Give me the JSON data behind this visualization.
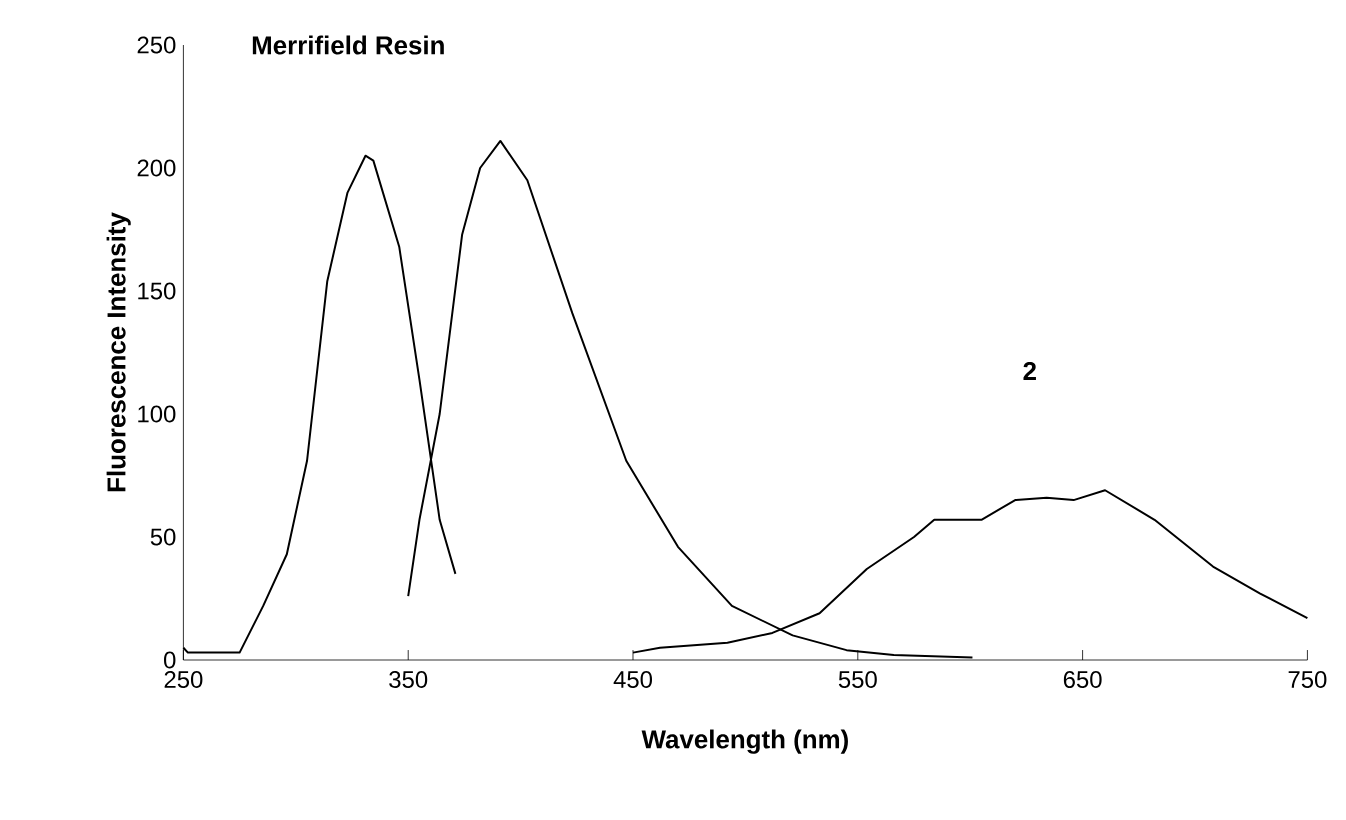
{
  "chart_data": {
    "type": "line",
    "title": "Merrifield Resin",
    "xlabel": "Wavelength (nm)",
    "ylabel": "Fluorescence Intensity",
    "xlim": [
      250,
      750
    ],
    "xticks": [
      250,
      350,
      450,
      550,
      650,
      750
    ],
    "ylim": [
      0,
      250
    ],
    "yticks": [
      0,
      50,
      100,
      150,
      200,
      250
    ],
    "grid": false,
    "marker": "none",
    "line_style": "solid",
    "annotations": [
      "2"
    ],
    "series": [
      {
        "color": "#000000",
        "x": [
          250,
          252,
          275,
          285.5,
          296,
          305,
          314,
          323,
          331,
          334.5,
          346,
          355,
          364,
          371
        ],
        "values": [
          5,
          3,
          3,
          22,
          43,
          81,
          154,
          190,
          205,
          203,
          168,
          114,
          57,
          35
        ]
      },
      {
        "color": "#000000",
        "x": [
          350,
          355,
          364,
          374,
          382,
          391,
          403,
          423,
          447,
          470,
          494,
          521,
          545,
          566,
          601
        ],
        "values": [
          26,
          57,
          100,
          173,
          200,
          211,
          195,
          141,
          81,
          46,
          22,
          10,
          4,
          2,
          1
        ]
      },
      {
        "color": "#000000",
        "x": [
          450,
          462,
          492,
          512,
          533,
          554,
          575,
          584,
          605,
          620,
          634,
          646,
          660,
          682,
          708,
          729,
          750
        ],
        "values": [
          3,
          5,
          7,
          11,
          19,
          37,
          50,
          57,
          57,
          65,
          66,
          65,
          69,
          57,
          38,
          27,
          17
        ]
      }
    ]
  }
}
